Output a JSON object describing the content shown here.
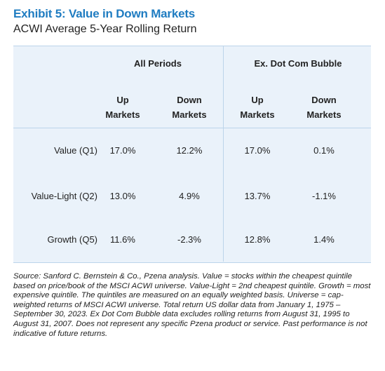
{
  "exhibit": {
    "title": "Exhibit 5: Value in Down Markets",
    "subtitle": "ACWI Average 5-Year Rolling Return"
  },
  "table": {
    "groups": [
      "All Periods",
      "Ex. Dot Com Bubble"
    ],
    "columns": [
      {
        "line1": "Up",
        "line2": "Markets"
      },
      {
        "line1": "Down",
        "line2": "Markets"
      },
      {
        "line1": "Up",
        "line2": "Markets"
      },
      {
        "line1": "Down",
        "line2": "Markets"
      }
    ],
    "rows": [
      {
        "label": "Value (Q1)",
        "values": [
          "17.0%",
          "12.2%",
          "17.0%",
          "0.1%"
        ]
      },
      {
        "label": "Value-Light (Q2)",
        "values": [
          "13.0%",
          "4.9%",
          "13.7%",
          "-1.1%"
        ]
      },
      {
        "label": "Growth (Q5)",
        "values": [
          "11.6%",
          "-2.3%",
          "12.8%",
          "1.4%"
        ]
      }
    ]
  },
  "footnote": "Source: Sanford C. Bernstein & Co., Pzena analysis. Value = stocks within the cheapest quintile based on price/book of the MSCI ACWI universe. Value-Light = 2nd cheapest quintile. Growth = most expensive quintile. The quintiles are measured on an equally weighted basis. Universe = cap-weighted returns of MSCI ACWI universe. Total return US dollar data from January 1, 1975 – September 30, 2023. Ex Dot Com Bubble data excludes rolling returns from August 31, 1995 to August 31, 2007. Does not represent any specific Pzena product or service. Past performance is not indicative of future returns.",
  "colors": {
    "title_blue": "#1f7cc1",
    "table_background": "#eaf2fa",
    "rule": "#bcd4ea",
    "text": "#222222"
  }
}
